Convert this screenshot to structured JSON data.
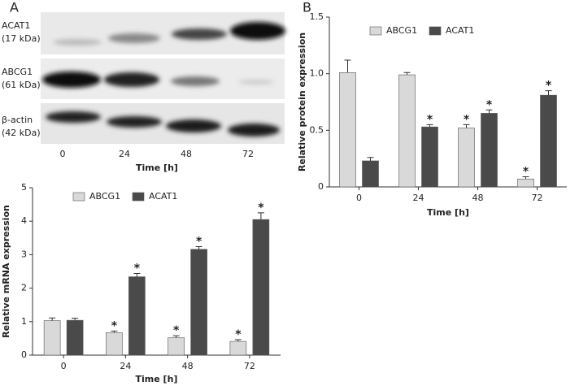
{
  "panel_labels": [
    "A",
    "B"
  ],
  "blot": {
    "rows": [
      {
        "name": "ACAT1",
        "size": "(17 kDa)"
      },
      {
        "name": "ABCG1",
        "size": "(61 kDa)"
      },
      {
        "name": "β-actin",
        "size": "(42 kDa)"
      }
    ],
    "x_labels": [
      "0",
      "24",
      "48",
      "72"
    ],
    "x_label": "Time [h]"
  },
  "chart_data": [
    {
      "type": "bar",
      "ylabel": "Relative protein expression",
      "xlabel": "Time [h]",
      "categories": [
        "0",
        "24",
        "48",
        "72"
      ],
      "series": [
        {
          "name": "ABCG1",
          "color": "#d9d9d9",
          "values": [
            1.01,
            0.99,
            0.52,
            0.07
          ],
          "errors": [
            0.11,
            0.02,
            0.03,
            0.02
          ],
          "markers": [
            null,
            null,
            "*",
            "*"
          ]
        },
        {
          "name": "ACAT1",
          "color": "#4a4a4a",
          "values": [
            0.23,
            0.53,
            0.65,
            0.81
          ],
          "errors": [
            0.03,
            0.02,
            0.03,
            0.04
          ],
          "markers": [
            null,
            "*",
            "*",
            "*"
          ]
        }
      ],
      "ylim": [
        0,
        1.5
      ],
      "yticks": [
        0,
        0.5,
        {
          "value": 1,
          "label": "1.0"
        },
        1.5
      ]
    },
    {
      "type": "bar",
      "ylabel": "Relative mRNA expression",
      "xlabel": "Time [h]",
      "categories": [
        "0",
        "24",
        "48",
        "72"
      ],
      "series": [
        {
          "name": "ABCG1",
          "color": "#d9d9d9",
          "values": [
            1.03,
            0.67,
            0.52,
            0.41
          ],
          "errors": [
            0.08,
            0.05,
            0.06,
            0.05
          ],
          "markers": [
            null,
            "*",
            "*",
            "*"
          ]
        },
        {
          "name": "ACAT1",
          "color": "#4a4a4a",
          "values": [
            1.04,
            2.34,
            3.16,
            4.05
          ],
          "errors": [
            0.06,
            0.1,
            0.08,
            0.2
          ],
          "markers": [
            null,
            "*",
            "*",
            "*"
          ]
        }
      ],
      "ylim": [
        0,
        5
      ],
      "yticks": [
        0,
        1,
        2,
        3,
        4,
        5
      ]
    }
  ]
}
